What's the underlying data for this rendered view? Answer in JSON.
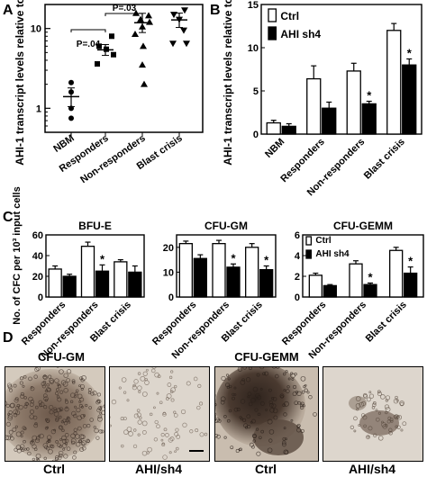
{
  "panel_labels": {
    "a": "A",
    "b": "B",
    "c": "C",
    "d": "D"
  },
  "chart_data": [
    {
      "id": "A",
      "type": "scatter",
      "ylabel": "AHI-1 transcript levels relative to NBM",
      "yscale": "log",
      "ylim": [
        0.5,
        20
      ],
      "yticks": [
        1,
        10
      ],
      "categories": [
        "NBM",
        "Responders",
        "Non-responders",
        "Blast crisis"
      ],
      "markers": [
        "circle",
        "square",
        "triangle-up",
        "triangle-down"
      ],
      "points": [
        [
          1.0,
          1.6,
          2.1,
          0.75
        ],
        [
          3.6,
          5.5,
          4.7,
          6.0,
          8.0
        ],
        [
          15.5,
          14.5,
          13.0,
          12.0,
          10.5,
          8.5,
          6.0,
          3.5,
          2.0
        ],
        [
          15.0,
          17.0,
          13.0,
          9.5,
          6.5,
          6.5
        ]
      ],
      "means": [
        1.4,
        5.4,
        11.8,
        12.8
      ],
      "sem": [
        [
          1.05,
          1.8
        ],
        [
          4.6,
          6.3
        ],
        [
          8.9,
          15.5
        ],
        [
          10.3,
          15.6
        ]
      ],
      "annotations": [
        "P=.04",
        "P=.03"
      ]
    },
    {
      "id": "B",
      "type": "bar",
      "ylabel": "AHI-1 transcript levels relative to NBM",
      "ylim": [
        0,
        15
      ],
      "yticks": [
        0,
        5,
        10,
        15
      ],
      "categories": [
        "NBM",
        "Responders",
        "Non-responders",
        "Blast crisis"
      ],
      "series": [
        {
          "name": "Ctrl",
          "values": [
            1.3,
            6.4,
            7.3,
            12.0
          ],
          "err": [
            0.3,
            1.5,
            0.9,
            0.8
          ],
          "color": "#ffffff"
        },
        {
          "name": "AHI sh4",
          "values": [
            0.9,
            3.0,
            3.5,
            8.0
          ],
          "err": [
            0.3,
            0.7,
            0.3,
            0.7
          ],
          "color": "#000000"
        }
      ],
      "significance": [
        "",
        "",
        "*",
        "*"
      ]
    },
    {
      "id": "C1",
      "type": "bar",
      "title": "BFU-E",
      "ylabel": "No. of CFC per 10³ input cells",
      "ylim": [
        0,
        60
      ],
      "yticks": [
        0,
        20,
        40,
        60
      ],
      "categories": [
        "Responders",
        "Non-responders",
        "Blast crisis"
      ],
      "series": [
        {
          "name": "Ctrl",
          "values": [
            27,
            49,
            34
          ],
          "err": [
            3,
            4,
            2
          ],
          "color": "#ffffff"
        },
        {
          "name": "AHI sh4",
          "values": [
            20,
            25,
            24
          ],
          "err": [
            2,
            6,
            6
          ],
          "color": "#000000"
        }
      ],
      "significance": [
        "",
        "*",
        ""
      ]
    },
    {
      "id": "C2",
      "type": "bar",
      "title": "CFU-GM",
      "ylim": [
        0,
        25
      ],
      "yticks": [
        0,
        10,
        20
      ],
      "categories": [
        "Responders",
        "Non-responders",
        "Blast crisis"
      ],
      "series": [
        {
          "name": "Ctrl",
          "values": [
            21.5,
            21.5,
            20.0
          ],
          "err": [
            1.0,
            1.3,
            1.5
          ],
          "color": "#ffffff"
        },
        {
          "name": "AHI sh4",
          "values": [
            15.5,
            12.0,
            11.0
          ],
          "err": [
            1.5,
            1.3,
            1.5
          ],
          "color": "#000000"
        }
      ],
      "significance": [
        "",
        "*",
        "*"
      ]
    },
    {
      "id": "C3",
      "type": "bar",
      "title": "CFU-GEMM",
      "ylim": [
        0,
        6
      ],
      "yticks": [
        0,
        2,
        4,
        6
      ],
      "categories": [
        "Responders",
        "Non-responders",
        "Blast crisis"
      ],
      "series": [
        {
          "name": "Ctrl",
          "values": [
            2.1,
            3.2,
            4.5
          ],
          "err": [
            0.2,
            0.3,
            0.3
          ],
          "color": "#ffffff"
        },
        {
          "name": "AHI sh4",
          "values": [
            1.1,
            1.2,
            2.3
          ],
          "err": [
            0.1,
            0.15,
            0.6
          ],
          "color": "#000000"
        }
      ],
      "significance": [
        "",
        "*",
        "*"
      ]
    }
  ],
  "photos": {
    "headers": [
      "CFU-GM",
      "CFU-GEMM"
    ],
    "captions": [
      "Ctrl",
      "AHI/sh4",
      "Ctrl",
      "AHI/sh4"
    ]
  }
}
